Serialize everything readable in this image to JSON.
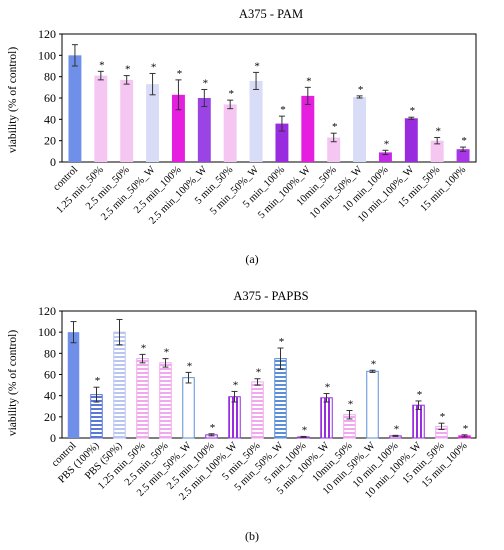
{
  "figure": {
    "panel_a_caption": "(a)",
    "panel_b_caption": "(b)",
    "significance_marker": "*"
  },
  "chart_data": [
    {
      "type": "bar",
      "title": "A375 - PAM",
      "xlabel": "",
      "ylabel": "viability (% of control)",
      "ylim": [
        0,
        120
      ],
      "yticks": [
        0,
        20,
        40,
        60,
        80,
        100,
        120
      ],
      "grid": false,
      "legend": "none",
      "categories": [
        "control",
        "1.25 min_50%",
        "2.5 min_50%",
        "2.5 min_50%_W",
        "2.5 min_100%",
        "2.5 min_100%_W",
        "5 min_50%",
        "5 min_50%_W",
        "5 min_100%",
        "5 min_100%_W",
        "10min_50%",
        "10 min_50%_W",
        "10 min_100%",
        "10 min_100%_W",
        "15 min_50%",
        "15 min_100%"
      ],
      "values": [
        100,
        81,
        77,
        73,
        63,
        60,
        54,
        76,
        36,
        62,
        23,
        61,
        9,
        41,
        20,
        12
      ],
      "errors": [
        10,
        4,
        4,
        10,
        14,
        8,
        4,
        8,
        7,
        8,
        4,
        1,
        2,
        1,
        3,
        2
      ],
      "significant": [
        false,
        true,
        true,
        true,
        true,
        true,
        true,
        true,
        true,
        true,
        true,
        true,
        true,
        true,
        true,
        true
      ],
      "colors": [
        "#6f8fe8",
        "#f5c6f2",
        "#f5c6f2",
        "#d8dcf6",
        "#e61ee0",
        "#9a44e6",
        "#f5c6f2",
        "#d8dcf6",
        "#9a2ce0",
        "#e61ee0",
        "#f5c6f2",
        "#d8dcf6",
        "#c22ce6",
        "#9a2ce0",
        "#f5c6f2",
        "#a836e6"
      ],
      "patterns": [
        "solid",
        "solid",
        "solid",
        "solid",
        "solid",
        "solid",
        "solid",
        "solid",
        "solid",
        "solid",
        "solid",
        "solid",
        "solid",
        "solid",
        "solid",
        "solid"
      ]
    },
    {
      "type": "bar",
      "title": "A375 - PAPBS",
      "xlabel": "",
      "ylabel": "viability (% of control)",
      "ylim": [
        0,
        120
      ],
      "yticks": [
        0,
        20,
        40,
        60,
        80,
        100,
        120
      ],
      "grid": false,
      "legend": "none",
      "categories": [
        "control",
        "PBS (100%)",
        "PBS (50%)",
        "1.25 min_50%",
        "2.5 min_50%",
        "2.5 min_50%_W",
        "2.5 min_100%",
        "2.5 min_100%_W",
        "5 min_50%",
        "5 min_50%_W",
        "5 min_100%",
        "5 min_100%_W",
        "10min_50%",
        "10 min_50%_W",
        "10 min_100%",
        "10 min_100%_W",
        "15 min_50%",
        "15 min_100%"
      ],
      "values": [
        100,
        41,
        100,
        75,
        71,
        57,
        3,
        39,
        53,
        75,
        1,
        38,
        22,
        63,
        2,
        31,
        11,
        2
      ],
      "errors": [
        10,
        7,
        12,
        4,
        4,
        5,
        1,
        5,
        3,
        10,
        0.5,
        4,
        4,
        1,
        0.5,
        4,
        3,
        1
      ],
      "significant": [
        false,
        true,
        false,
        true,
        true,
        true,
        true,
        true,
        true,
        true,
        true,
        true,
        true,
        true,
        true,
        true,
        true,
        true
      ],
      "colors": [
        "#6f8fe8",
        "#5b78d8",
        "#b8c6f0",
        "#f0a8ee",
        "#f0a8ee",
        "#5b8fd8",
        "#9a2ce0",
        "#9a2ce0",
        "#f0a8ee",
        "#5b8fd8",
        "#9a2ce0",
        "#9a2ce0",
        "#f0a8ee",
        "#5b8fd8",
        "#9a2ce0",
        "#9a2ce0",
        "#f0a8ee",
        "#e61ee0"
      ],
      "patterns": [
        "solid",
        "hlines",
        "hlines",
        "hlines",
        "hlines",
        "outline",
        "outline",
        "vlines",
        "hlines",
        "hlines",
        "outline",
        "vlines",
        "hlines",
        "outline",
        "outline",
        "vlines",
        "hlines",
        "hlines"
      ]
    }
  ]
}
